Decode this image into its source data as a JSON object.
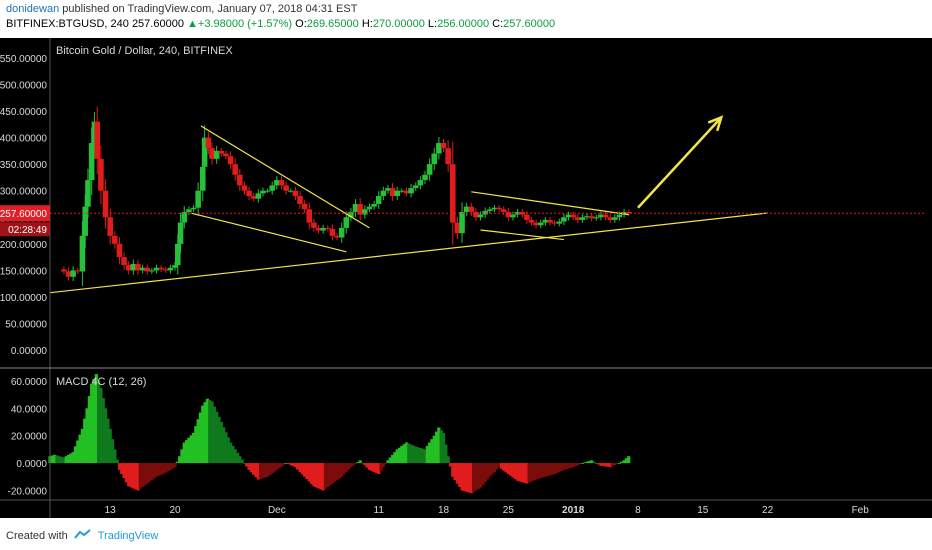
{
  "header": {
    "user": "donidewan",
    "published": "published on TradingView.com, January 07, 2018 04:31 EST",
    "symbol": "BITFINEX:BTGUSD, 240",
    "price": "257.60000",
    "change": "+3.98000 (+1.57%)",
    "open_label": "O:",
    "open": "269.65000",
    "high_label": "H:",
    "high": "270.00000",
    "low_label": "L:",
    "low": "256.00000",
    "close_label": "C:",
    "close": "257.60000"
  },
  "footer": {
    "created_with": "Created with",
    "brand": "TradingView"
  },
  "colors": {
    "up": "#26c13a",
    "down": "#e01c1c",
    "trend": "#f0e64a",
    "axis_text": "#d9d9d9",
    "price_tag": "#e31e24"
  },
  "chart_data": {
    "type": "candlestick",
    "title": "Bitcoin Gold / Dollar, 240, BITFINEX",
    "price_axis": {
      "ticks": [
        "550.00000",
        "500.00000",
        "450.00000",
        "400.00000",
        "350.00000",
        "300.00000",
        "250.00000",
        "200.00000",
        "150.00000",
        "100.00000",
        "50.00000",
        "0.00000"
      ],
      "tick_values": [
        550,
        500,
        450,
        400,
        350,
        300,
        250,
        200,
        150,
        100,
        50,
        0
      ],
      "ylim": [
        -30,
        580
      ]
    },
    "current_price": {
      "value": 257.6,
      "label": "257.60000",
      "countdown": "02:28:49"
    },
    "x_axis": {
      "labels": [
        "13",
        "20",
        "Dec",
        "11",
        "18",
        "25",
        "2018",
        "8",
        "15",
        "22",
        "Feb"
      ],
      "label_days": [
        13,
        20,
        31,
        42,
        49,
        56,
        63,
        70,
        77,
        84,
        94
      ],
      "xlim": [
        6.5,
        101
      ]
    },
    "closes": [
      [
        7,
        152
      ],
      [
        8,
        148
      ],
      [
        8.5,
        138
      ],
      [
        9,
        150
      ],
      [
        9.5,
        148
      ],
      [
        10,
        215
      ],
      [
        10.3,
        270
      ],
      [
        10.6,
        320
      ],
      [
        11,
        390
      ],
      [
        11.3,
        430
      ],
      [
        11.6,
        360
      ],
      [
        12,
        300
      ],
      [
        12.5,
        250
      ],
      [
        13,
        215
      ],
      [
        13.5,
        200
      ],
      [
        14,
        175
      ],
      [
        14.5,
        160
      ],
      [
        15,
        150
      ],
      [
        15.5,
        162
      ],
      [
        16,
        150
      ],
      [
        16.5,
        155
      ],
      [
        17,
        148
      ],
      [
        17.5,
        150
      ],
      [
        18,
        155
      ],
      [
        18.5,
        152
      ],
      [
        19,
        150
      ],
      [
        19.5,
        155
      ],
      [
        20,
        160
      ],
      [
        20.3,
        200
      ],
      [
        20.6,
        240
      ],
      [
        21,
        260
      ],
      [
        21.5,
        265
      ],
      [
        22,
        268
      ],
      [
        22.5,
        300
      ],
      [
        23,
        345
      ],
      [
        23.2,
        400
      ],
      [
        23.6,
        380
      ],
      [
        24,
        360
      ],
      [
        24.5,
        375
      ],
      [
        25,
        370
      ],
      [
        25.5,
        365
      ],
      [
        26,
        350
      ],
      [
        26.5,
        330
      ],
      [
        27,
        310
      ],
      [
        27.5,
        300
      ],
      [
        28,
        290
      ],
      [
        28.5,
        285
      ],
      [
        29,
        295
      ],
      [
        29.5,
        300
      ],
      [
        30,
        300
      ],
      [
        30.5,
        310
      ],
      [
        31,
        320
      ],
      [
        31.5,
        310
      ],
      [
        32,
        300
      ],
      [
        32.5,
        300
      ],
      [
        33,
        290
      ],
      [
        33.5,
        275
      ],
      [
        34,
        265
      ],
      [
        34.5,
        240
      ],
      [
        35,
        230
      ],
      [
        35.5,
        225
      ],
      [
        36,
        230
      ],
      [
        36.5,
        228
      ],
      [
        37,
        215
      ],
      [
        37.5,
        212
      ],
      [
        38,
        230
      ],
      [
        38.5,
        250
      ],
      [
        39,
        260
      ],
      [
        39.5,
        275
      ],
      [
        40,
        255
      ],
      [
        40.5,
        265
      ],
      [
        41,
        270
      ],
      [
        41.5,
        275
      ],
      [
        42,
        290
      ],
      [
        42.5,
        300
      ],
      [
        43,
        305
      ],
      [
        43.5,
        290
      ],
      [
        44,
        300
      ],
      [
        44.5,
        300
      ],
      [
        45,
        295
      ],
      [
        45.5,
        305
      ],
      [
        46,
        310
      ],
      [
        46.5,
        320
      ],
      [
        47,
        330
      ],
      [
        47.5,
        350
      ],
      [
        48,
        370
      ],
      [
        48.5,
        390
      ],
      [
        49,
        380
      ],
      [
        49.5,
        350
      ],
      [
        50,
        240
      ],
      [
        50.5,
        220
      ],
      [
        51,
        260
      ],
      [
        51.5,
        270
      ],
      [
        52,
        260
      ],
      [
        52.5,
        250
      ],
      [
        53,
        255
      ],
      [
        53.5,
        262
      ],
      [
        54,
        265
      ],
      [
        54.5,
        268
      ],
      [
        55,
        265
      ],
      [
        55.5,
        260
      ],
      [
        56,
        250
      ],
      [
        56.5,
        255
      ],
      [
        57,
        260
      ],
      [
        57.5,
        255
      ],
      [
        58,
        245
      ],
      [
        58.5,
        240
      ],
      [
        59,
        235
      ],
      [
        59.5,
        240
      ],
      [
        60,
        245
      ],
      [
        60.5,
        240
      ],
      [
        61,
        238
      ],
      [
        61.5,
        242
      ],
      [
        62,
        250
      ],
      [
        62.5,
        255
      ],
      [
        63,
        250
      ],
      [
        63.5,
        245
      ],
      [
        64,
        250
      ],
      [
        64.5,
        252
      ],
      [
        65,
        248
      ],
      [
        65.5,
        250
      ],
      [
        66,
        255
      ],
      [
        66.5,
        250
      ],
      [
        67,
        245
      ],
      [
        67.5,
        250
      ],
      [
        68,
        255
      ],
      [
        68.5,
        260
      ],
      [
        69,
        257.6
      ]
    ],
    "trendlines": [
      {
        "from": [
          6.5,
          108
        ],
        "to": [
          84,
          258
        ]
      },
      {
        "from": [
          22.8,
          422
        ],
        "to": [
          41,
          230
        ]
      },
      {
        "from": [
          21.7,
          258
        ],
        "to": [
          38.5,
          185
        ]
      },
      {
        "from": [
          52,
          298
        ],
        "to": [
          69,
          255
        ]
      },
      {
        "from": [
          53,
          226
        ],
        "to": [
          62,
          208
        ]
      }
    ],
    "arrow": {
      "from": [
        70,
        268
      ],
      "to": [
        79,
        438
      ]
    },
    "macd": {
      "label": "MACD 4C (12, 26)",
      "ticks": [
        "60.0000",
        "40.0000",
        "20.0000",
        "0.0000",
        "-20.0000"
      ],
      "tick_values": [
        60,
        40,
        20,
        0,
        -20
      ],
      "ylim": [
        -27,
        68
      ],
      "histogram": [
        [
          6.5,
          5
        ],
        [
          7,
          6
        ],
        [
          8,
          4
        ],
        [
          9,
          8
        ],
        [
          10,
          25
        ],
        [
          10.5,
          40
        ],
        [
          11,
          58
        ],
        [
          11.5,
          65
        ],
        [
          12,
          55
        ],
        [
          12.5,
          40
        ],
        [
          13,
          25
        ],
        [
          13.5,
          10
        ],
        [
          14,
          -5
        ],
        [
          15,
          -17
        ],
        [
          16,
          -20
        ],
        [
          17,
          -15
        ],
        [
          18,
          -10
        ],
        [
          19,
          -7
        ],
        [
          20,
          -3
        ],
        [
          20.5,
          5
        ],
        [
          21,
          15
        ],
        [
          22,
          22
        ],
        [
          22.5,
          32
        ],
        [
          23,
          42
        ],
        [
          23.5,
          47
        ],
        [
          24,
          45
        ],
        [
          25,
          30
        ],
        [
          26,
          15
        ],
        [
          27,
          5
        ],
        [
          28,
          -5
        ],
        [
          29,
          -12
        ],
        [
          30,
          -10
        ],
        [
          31,
          -5
        ],
        [
          32,
          0
        ],
        [
          33,
          -3
        ],
        [
          34,
          -10
        ],
        [
          35,
          -17
        ],
        [
          36,
          -20
        ],
        [
          37,
          -15
        ],
        [
          38,
          -10
        ],
        [
          39,
          -3
        ],
        [
          40,
          2
        ],
        [
          41,
          -5
        ],
        [
          42,
          -8
        ],
        [
          43,
          2
        ],
        [
          44,
          10
        ],
        [
          45,
          15
        ],
        [
          46,
          12
        ],
        [
          47,
          10
        ],
        [
          48,
          20
        ],
        [
          48.5,
          26
        ],
        [
          49,
          22
        ],
        [
          49.5,
          5
        ],
        [
          50,
          -10
        ],
        [
          51,
          -20
        ],
        [
          52,
          -22
        ],
        [
          53,
          -18
        ],
        [
          54,
          -10
        ],
        [
          55,
          -3
        ],
        [
          56,
          -8
        ],
        [
          57,
          -13
        ],
        [
          58,
          -15
        ],
        [
          59,
          -12
        ],
        [
          60,
          -10
        ],
        [
          61,
          -8
        ],
        [
          62,
          -5
        ],
        [
          63,
          -3
        ],
        [
          64,
          0
        ],
        [
          65,
          2
        ],
        [
          66,
          -2
        ],
        [
          67,
          -3
        ],
        [
          68,
          0
        ],
        [
          68.5,
          2
        ],
        [
          69,
          5
        ]
      ]
    }
  }
}
